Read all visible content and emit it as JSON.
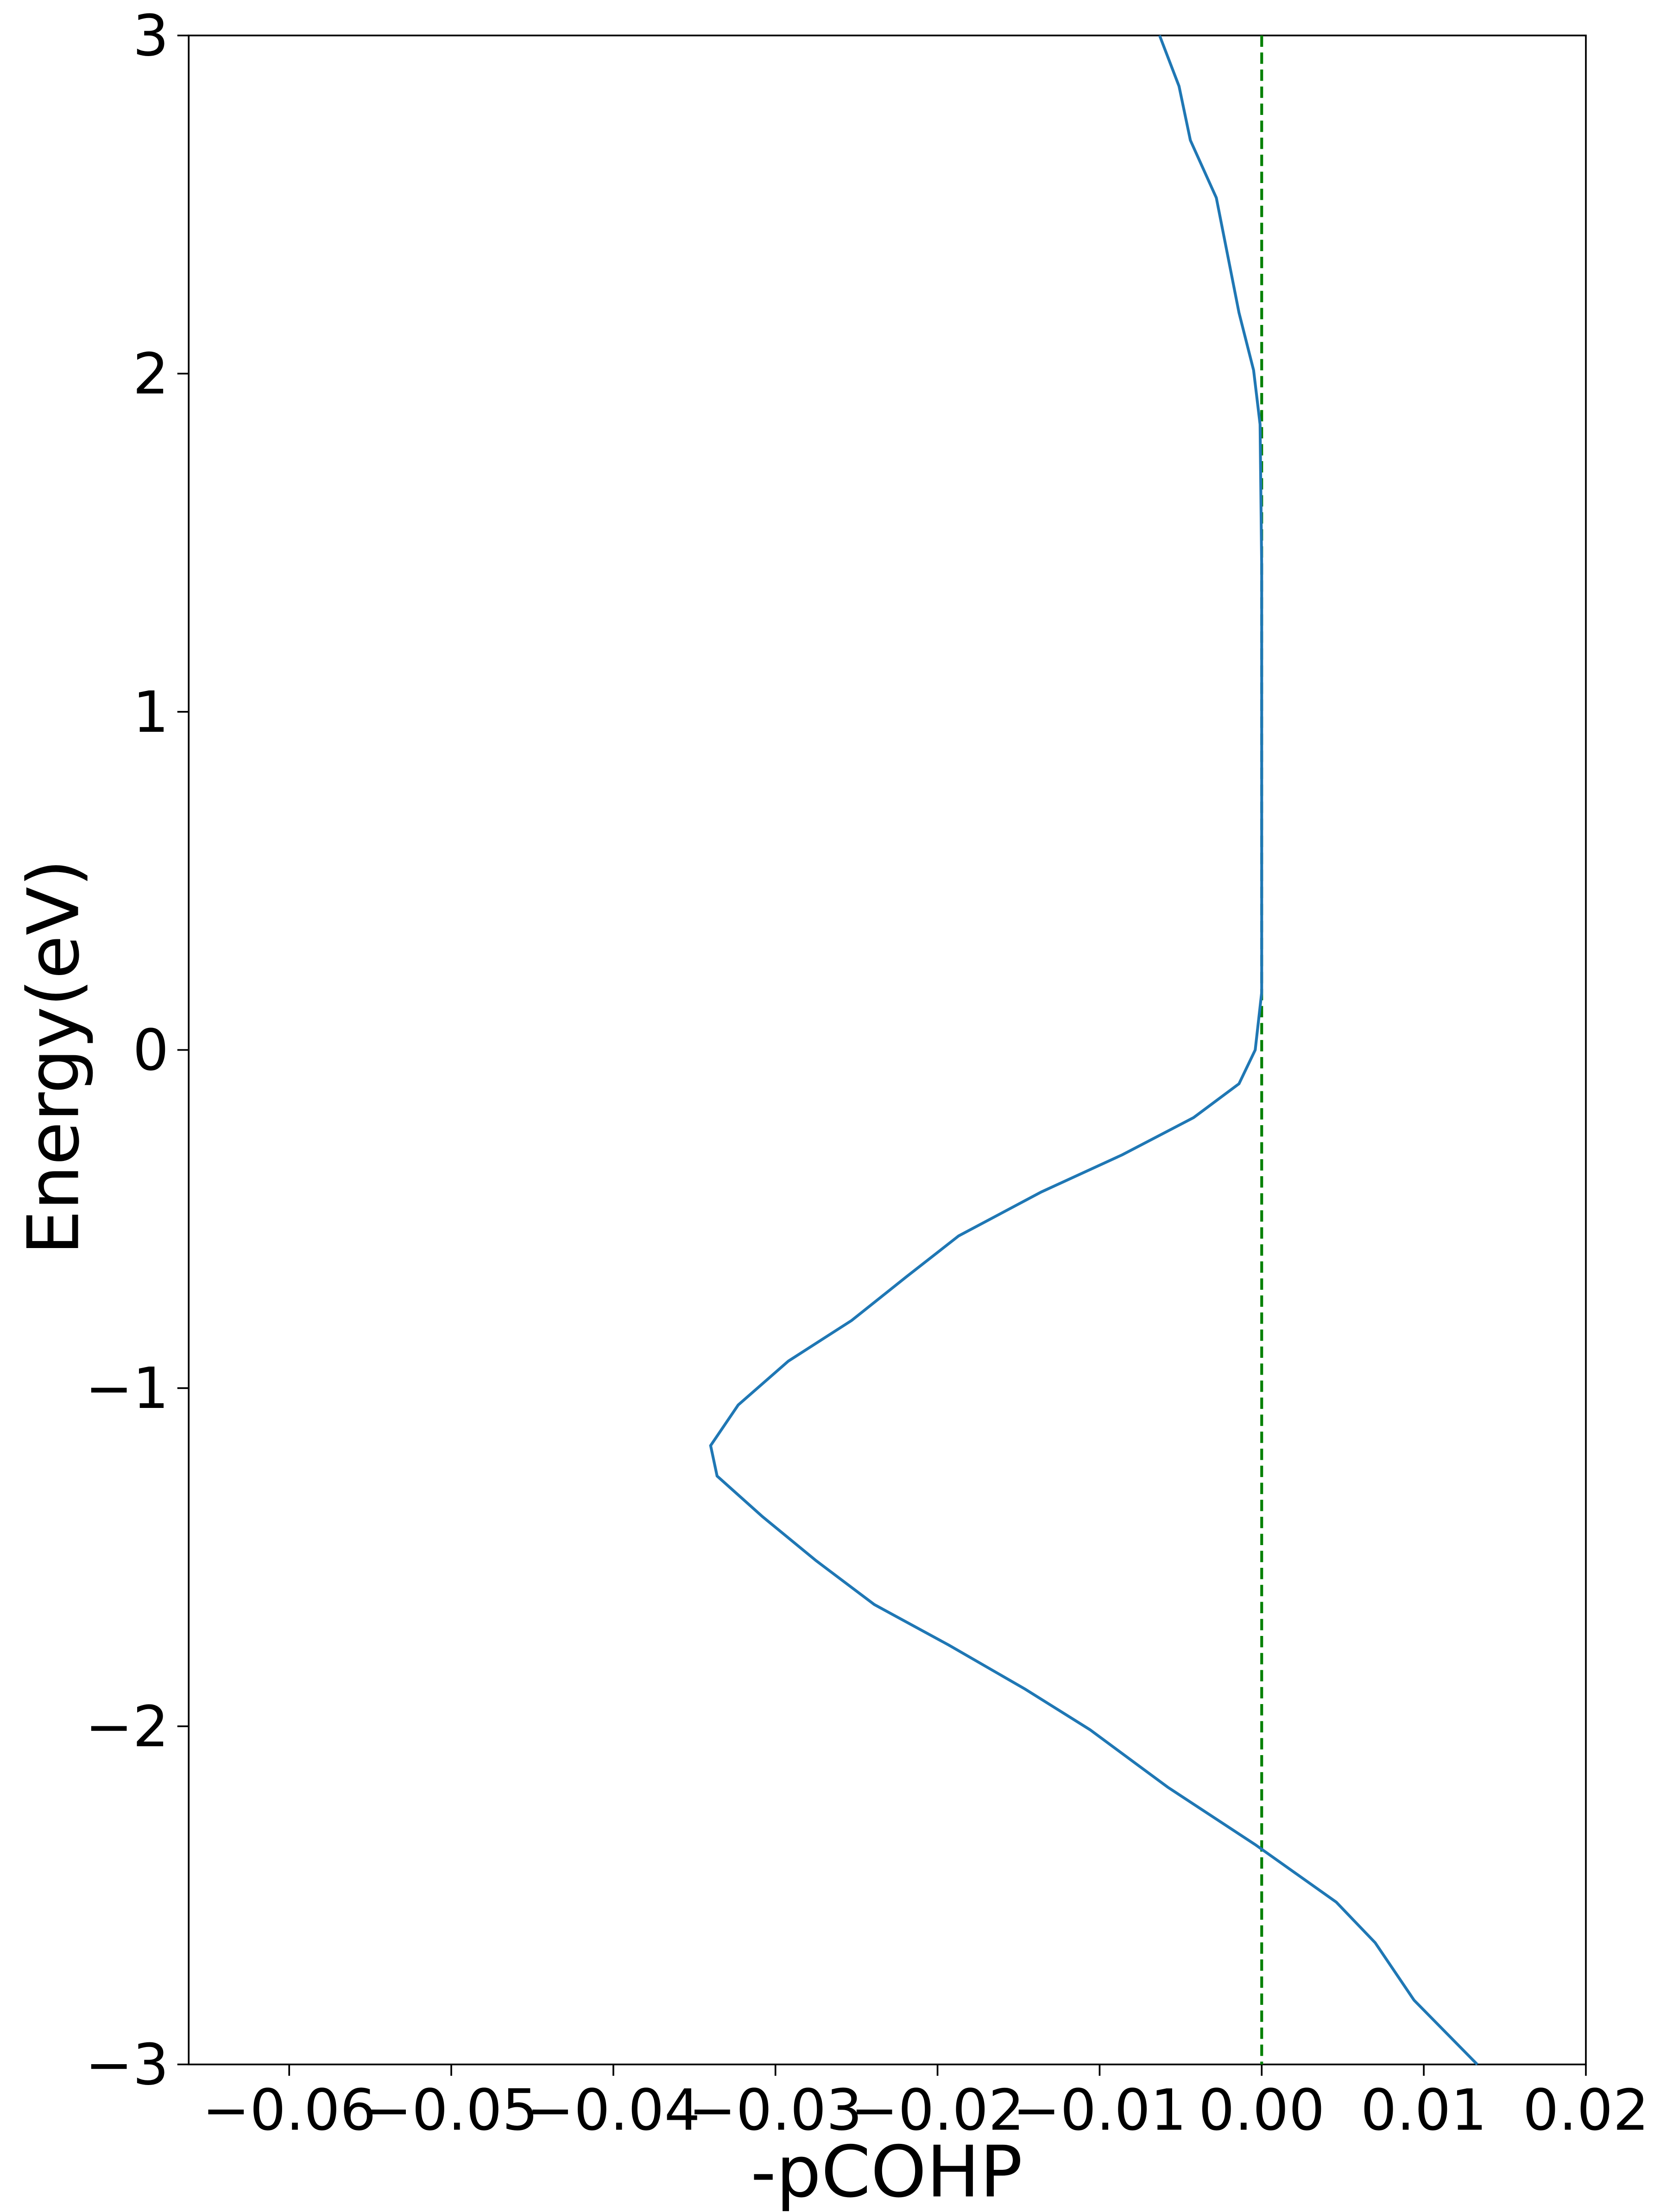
{
  "chart_data": {
    "type": "line",
    "x_label": "-pCOHP",
    "y_label": "Energy(eV)",
    "x": [
      -0.0063,
      -0.0051,
      -0.0044,
      -0.0028,
      -0.0021,
      -0.0014,
      -0.0005,
      -0.0001,
      0,
      0,
      0,
      0,
      -0.0004,
      -0.0014,
      -0.0042,
      -0.0086,
      -0.0136,
      -0.0187,
      -0.0219,
      -0.0253,
      -0.0292,
      -0.0323,
      -0.034,
      -0.0336,
      -0.0308,
      -0.0275,
      -0.0239,
      -0.0193,
      -0.0146,
      -0.0106,
      -0.0058,
      -0.0004,
      0.0046,
      0.007,
      0.0094,
      0.0133
    ],
    "y": [
      3,
      2.85,
      2.69,
      2.52,
      2.35,
      2.18,
      2.01,
      1.85,
      1.43,
      1.0,
      0.5,
      0.17,
      0,
      -0.1,
      -0.2,
      -0.31,
      -0.42,
      -0.55,
      -0.67,
      -0.8,
      -0.92,
      -1.05,
      -1.17,
      -1.26,
      -1.38,
      -1.51,
      -1.64,
      -1.76,
      -1.89,
      -2.01,
      -2.18,
      -2.35,
      -2.52,
      -2.64,
      -2.81,
      -3
    ],
    "color": "#1f77b4",
    "vline_x": 0,
    "vline_color": "#008000",
    "xlim": [
      -0.0662,
      0.02
    ],
    "xticks": [
      {
        "value": -0.06,
        "label": "−0.06"
      },
      {
        "value": -0.05,
        "label": "−0.05"
      },
      {
        "value": -0.04,
        "label": "−0.04"
      },
      {
        "value": -0.03,
        "label": "−0.03"
      },
      {
        "value": -0.02,
        "label": "−0.02"
      },
      {
        "value": -0.01,
        "label": "−0.01"
      },
      {
        "value": 0,
        "label": "0.00"
      },
      0.01,
      0.02
    ],
    "ylim": [
      -3,
      3
    ],
    "yticks": [
      {
        "value": -3,
        "label": "−3"
      },
      {
        "value": -2,
        "label": "−2"
      },
      {
        "value": -1,
        "label": "−1"
      },
      0,
      1,
      2,
      3
    ]
  }
}
